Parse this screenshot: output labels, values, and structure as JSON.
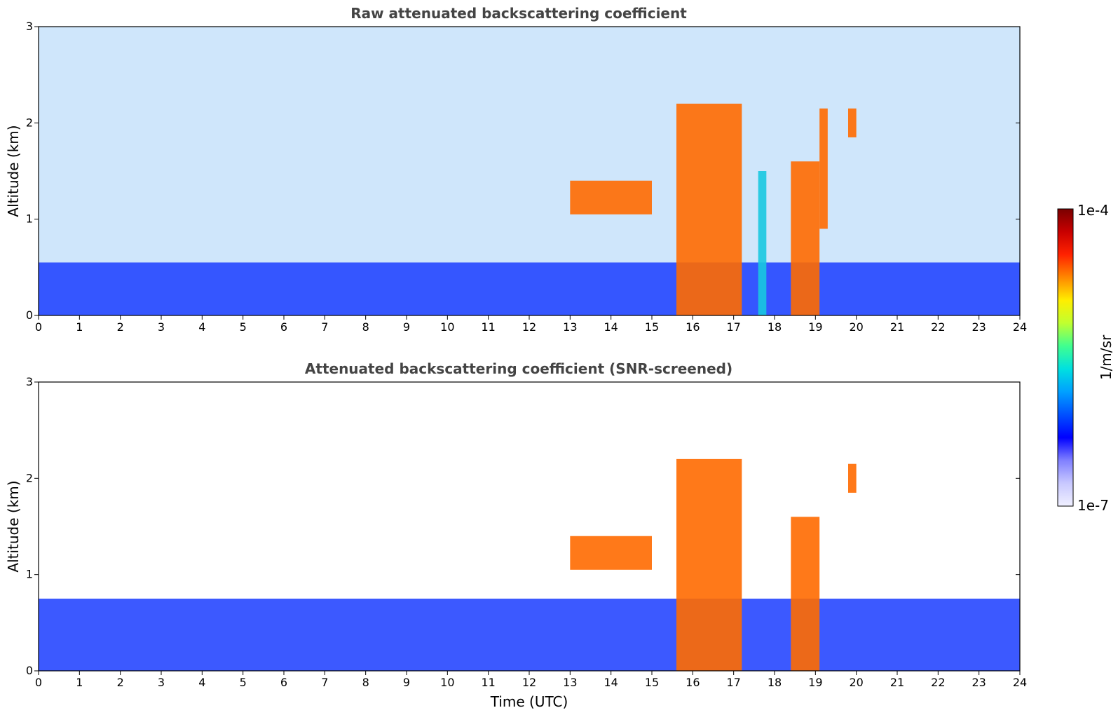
{
  "chart_data": [
    {
      "type": "heatmap",
      "title": "Raw attenuated backscattering coefficient",
      "xlabel": "",
      "ylabel": "Altitude (km)",
      "xlim": [
        0,
        24
      ],
      "ylim": [
        0,
        3
      ],
      "x_ticks": [
        "0",
        "1",
        "2",
        "3",
        "4",
        "5",
        "6",
        "7",
        "8",
        "9",
        "10",
        "11",
        "12",
        "13",
        "14",
        "15",
        "16",
        "17",
        "18",
        "19",
        "20",
        "21",
        "22",
        "23",
        "24"
      ],
      "y_ticks": [
        "0",
        "1",
        "2",
        "3"
      ],
      "features": [
        {
          "t_start": 0.0,
          "t_end": 24.0,
          "alt_bottom": 0.0,
          "alt_top": 0.55,
          "level": "low"
        },
        {
          "t_start": 13.0,
          "t_end": 15.0,
          "alt_bottom": 1.05,
          "alt_top": 1.4,
          "level": "high"
        },
        {
          "t_start": 15.6,
          "t_end": 17.2,
          "alt_bottom": 0.0,
          "alt_top": 2.2,
          "level": "high"
        },
        {
          "t_start": 17.6,
          "t_end": 17.8,
          "alt_bottom": 0.0,
          "alt_top": 1.5,
          "level": "medium"
        },
        {
          "t_start": 18.4,
          "t_end": 19.1,
          "alt_bottom": 0.0,
          "alt_top": 1.6,
          "level": "high"
        },
        {
          "t_start": 19.1,
          "t_end": 19.3,
          "alt_bottom": 0.9,
          "alt_top": 2.15,
          "level": "high"
        },
        {
          "t_start": 19.8,
          "t_end": 20.0,
          "alt_bottom": 1.85,
          "alt_top": 2.15,
          "level": "high"
        }
      ]
    },
    {
      "type": "heatmap",
      "title": "Attenuated backscattering coefficient (SNR-screened)",
      "xlabel": "Time (UTC)",
      "ylabel": "Altitude (km)",
      "xlim": [
        0,
        24
      ],
      "ylim": [
        0,
        3
      ],
      "x_ticks": [
        "0",
        "1",
        "2",
        "3",
        "4",
        "5",
        "6",
        "7",
        "8",
        "9",
        "10",
        "11",
        "12",
        "13",
        "14",
        "15",
        "16",
        "17",
        "18",
        "19",
        "20",
        "21",
        "22",
        "23",
        "24"
      ],
      "y_ticks": [
        "0",
        "1",
        "2",
        "3"
      ],
      "features": [
        {
          "t_start": 0.0,
          "t_end": 24.0,
          "alt_bottom": 0.0,
          "alt_top": 0.75,
          "level": "low"
        },
        {
          "t_start": 13.0,
          "t_end": 15.0,
          "alt_bottom": 1.05,
          "alt_top": 1.4,
          "level": "high"
        },
        {
          "t_start": 15.6,
          "t_end": 17.2,
          "alt_bottom": 0.0,
          "alt_top": 2.2,
          "level": "high"
        },
        {
          "t_start": 18.4,
          "t_end": 19.1,
          "alt_bottom": 0.0,
          "alt_top": 1.6,
          "level": "high"
        },
        {
          "t_start": 19.8,
          "t_end": 20.0,
          "alt_bottom": 1.85,
          "alt_top": 2.15,
          "level": "high"
        }
      ]
    }
  ],
  "colorbar": {
    "label": "1/m/sr",
    "max_label": "1e-4",
    "min_label": "1e-7",
    "colors": [
      "#f0f0ff",
      "#c8c8ff",
      "#8080ff",
      "#0000ff",
      "#0050ff",
      "#00a0ff",
      "#00e0e0",
      "#40ff90",
      "#c0ff30",
      "#ffee00",
      "#ff8800",
      "#ff2200",
      "#c80000",
      "#7a0000"
    ]
  }
}
